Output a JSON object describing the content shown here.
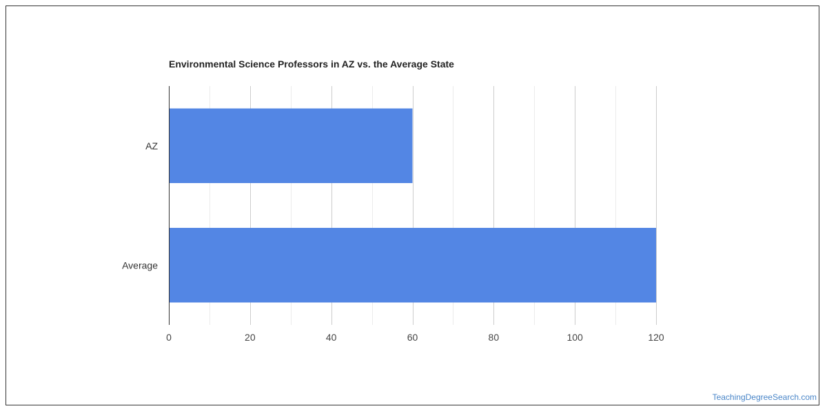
{
  "chart_data": {
    "type": "bar",
    "orientation": "horizontal",
    "title": "Environmental Science Professors in AZ vs. the Average State",
    "categories": [
      "AZ",
      "Average"
    ],
    "values": [
      60,
      120
    ],
    "xlim": [
      0,
      120
    ],
    "x_ticks": [
      0,
      20,
      40,
      60,
      80,
      100,
      120
    ],
    "grid": true,
    "bar_color": "#5386e4"
  },
  "watermark": "TeachingDegreeSearch.com"
}
